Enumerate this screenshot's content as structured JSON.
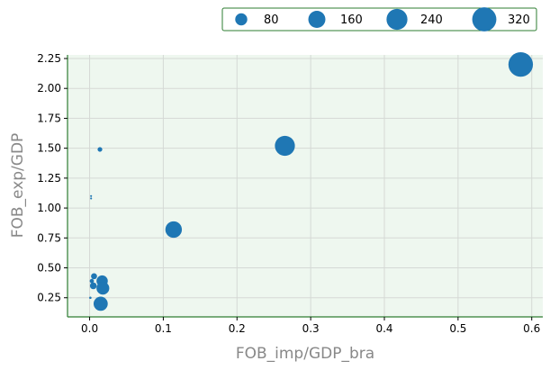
{
  "chart_data": {
    "type": "scatter",
    "xlabel": "FOB_imp/GDP_bra",
    "ylabel": "FOB_exp/GDP",
    "xlim": [
      -0.03,
      0.615
    ],
    "ylim": [
      0.09,
      2.28
    ],
    "x_ticks": [
      0.0,
      0.1,
      0.2,
      0.3,
      0.4,
      0.5,
      0.6
    ],
    "x_tick_labels": [
      "0.0",
      "0.1",
      "0.2",
      "0.3",
      "0.4",
      "0.5",
      "0.6"
    ],
    "y_ticks": [
      0.25,
      0.5,
      0.75,
      1.0,
      1.25,
      1.5,
      1.75,
      2.0,
      2.25
    ],
    "y_tick_labels": [
      "0.25",
      "0.50",
      "0.75",
      "1.00",
      "1.25",
      "1.50",
      "1.75",
      "2.00",
      "2.25"
    ],
    "grid": true,
    "background_color": "#eef7ef",
    "point_color": "#1f77b4",
    "axis_color": "#2e7d32",
    "legend": {
      "placement": "top-right, above plot",
      "title": "",
      "entries": [
        {
          "label": "80",
          "size": 80
        },
        {
          "label": "160",
          "size": 160
        },
        {
          "label": "240",
          "size": 240
        },
        {
          "label": "320",
          "size": 320
        }
      ]
    },
    "points": [
      {
        "x": 0.585,
        "y": 2.2,
        "size": 330
      },
      {
        "x": 0.265,
        "y": 1.52,
        "size": 220
      },
      {
        "x": 0.114,
        "y": 0.82,
        "size": 150
      },
      {
        "x": 0.014,
        "y": 1.49,
        "size": 12
      },
      {
        "x": 0.002,
        "y": 1.1,
        "size": 2
      },
      {
        "x": 0.002,
        "y": 1.08,
        "size": 2
      },
      {
        "x": 0.006,
        "y": 0.43,
        "size": 20
      },
      {
        "x": 0.003,
        "y": 0.39,
        "size": 10
      },
      {
        "x": 0.017,
        "y": 0.39,
        "size": 70
      },
      {
        "x": 0.005,
        "y": 0.35,
        "size": 25
      },
      {
        "x": 0.018,
        "y": 0.33,
        "size": 90
      },
      {
        "x": 0.001,
        "y": 0.25,
        "size": 3
      },
      {
        "x": 0.015,
        "y": 0.2,
        "size": 110
      }
    ]
  }
}
